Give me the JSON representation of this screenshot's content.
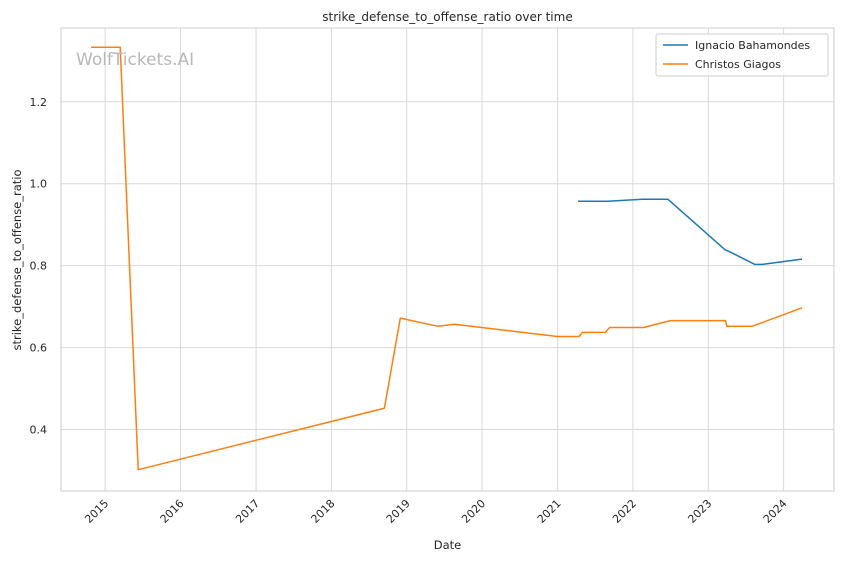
{
  "chart_data": {
    "type": "line",
    "title": "strike_defense_to_offense_ratio over time",
    "xlabel": "Date",
    "ylabel": "strike_defense_to_offense_ratio",
    "watermark": "WolfTickets.AI",
    "xlim": [
      "2014-06-01",
      "2024-09-01"
    ],
    "ylim": [
      0.25,
      1.38
    ],
    "x_ticks": [
      "2015",
      "2016",
      "2017",
      "2018",
      "2019",
      "2020",
      "2021",
      "2022",
      "2023",
      "2024"
    ],
    "y_ticks": [
      0.4,
      0.6,
      0.8,
      1.0,
      1.2
    ],
    "y_tick_labels": [
      "0.4",
      "0.6",
      "0.8",
      "1.0",
      "1.2"
    ],
    "grid": true,
    "legend_position": "top-right",
    "series": [
      {
        "name": "Ignacio Bahamondes",
        "color": "#1f77b4",
        "points": [
          {
            "x": "2021-04-10",
            "y": 0.957
          },
          {
            "x": "2021-09-01",
            "y": 0.957
          },
          {
            "x": "2022-02-15",
            "y": 0.962
          },
          {
            "x": "2022-06-20",
            "y": 0.962
          },
          {
            "x": "2023-03-25",
            "y": 0.838
          },
          {
            "x": "2023-04-10",
            "y": 0.835
          },
          {
            "x": "2023-08-15",
            "y": 0.803
          },
          {
            "x": "2023-09-20",
            "y": 0.803
          },
          {
            "x": "2024-03-30",
            "y": 0.816
          }
        ]
      },
      {
        "name": "Christos Giagos",
        "color": "#ff7f0e",
        "points": [
          {
            "x": "2014-10-25",
            "y": 1.333
          },
          {
            "x": "2015-03-15",
            "y": 1.333
          },
          {
            "x": "2015-06-10",
            "y": 0.302
          },
          {
            "x": "2018-09-15",
            "y": 0.452
          },
          {
            "x": "2018-12-01",
            "y": 0.672
          },
          {
            "x": "2019-06-01",
            "y": 0.652
          },
          {
            "x": "2019-08-20",
            "y": 0.657
          },
          {
            "x": "2021-01-01",
            "y": 0.627
          },
          {
            "x": "2021-04-15",
            "y": 0.627
          },
          {
            "x": "2021-05-01",
            "y": 0.637
          },
          {
            "x": "2021-08-20",
            "y": 0.637
          },
          {
            "x": "2021-09-10",
            "y": 0.649
          },
          {
            "x": "2022-02-20",
            "y": 0.649
          },
          {
            "x": "2022-07-01",
            "y": 0.666
          },
          {
            "x": "2023-03-25",
            "y": 0.666
          },
          {
            "x": "2023-04-01",
            "y": 0.652
          },
          {
            "x": "2023-08-01",
            "y": 0.652
          },
          {
            "x": "2024-03-30",
            "y": 0.697
          }
        ]
      }
    ]
  }
}
